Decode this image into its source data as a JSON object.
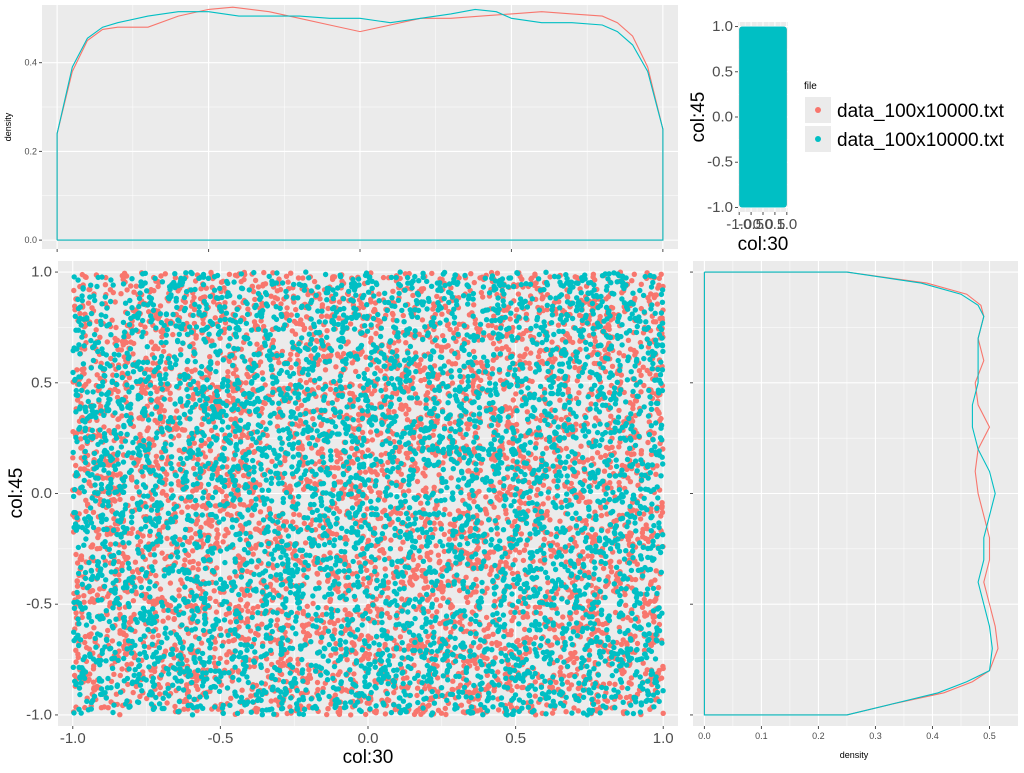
{
  "colors": {
    "series1": "#F8766D",
    "series2": "#00BFC4",
    "panel": "#EBEBEB",
    "grid": "#FFFFFF",
    "tick": "#4D4D4D"
  },
  "legend": {
    "title": "file",
    "entries": [
      "data_100x10000.txt",
      "data_100x10000.txt"
    ],
    "placement": "right"
  },
  "chart_data": [
    {
      "id": "top-density",
      "type": "line",
      "xlabel": "",
      "ylabel": "density",
      "xlim": [
        -1.05,
        1.05
      ],
      "ylim": [
        -0.02,
        0.53
      ],
      "xticks": [
        -1.0,
        -0.5,
        0.0,
        0.5,
        1.0
      ],
      "yticks": [
        0.0,
        0.2,
        0.4
      ],
      "ytick_labels": [
        "0.0",
        "0.2",
        "0.4"
      ],
      "grid": true,
      "series": [
        {
          "color": "#F8766D",
          "x": [
            -1.0,
            -1.0,
            -0.95,
            -0.9,
            -0.85,
            -0.8,
            -0.7,
            -0.6,
            -0.5,
            -0.42,
            -0.3,
            -0.2,
            -0.1,
            0.0,
            0.1,
            0.2,
            0.3,
            0.4,
            0.5,
            0.6,
            0.7,
            0.8,
            0.85,
            0.9,
            0.95,
            1.0,
            1.0,
            -1.0
          ],
          "y": [
            0.0,
            0.24,
            0.38,
            0.45,
            0.475,
            0.48,
            0.48,
            0.505,
            0.52,
            0.525,
            0.515,
            0.5,
            0.485,
            0.47,
            0.485,
            0.5,
            0.5,
            0.505,
            0.51,
            0.515,
            0.51,
            0.505,
            0.49,
            0.46,
            0.39,
            0.25,
            0.0,
            0.0
          ]
        },
        {
          "color": "#00BFC4",
          "x": [
            -1.0,
            -1.0,
            -0.95,
            -0.9,
            -0.85,
            -0.8,
            -0.7,
            -0.6,
            -0.5,
            -0.4,
            -0.3,
            -0.2,
            -0.1,
            0.0,
            0.1,
            0.2,
            0.3,
            0.38,
            0.45,
            0.5,
            0.6,
            0.7,
            0.8,
            0.85,
            0.9,
            0.95,
            1.0,
            1.0,
            -1.0
          ],
          "y": [
            0.0,
            0.24,
            0.39,
            0.455,
            0.48,
            0.49,
            0.505,
            0.515,
            0.515,
            0.505,
            0.505,
            0.505,
            0.5,
            0.5,
            0.49,
            0.5,
            0.51,
            0.52,
            0.515,
            0.5,
            0.49,
            0.49,
            0.485,
            0.47,
            0.44,
            0.38,
            0.25,
            0.0,
            0.0
          ]
        }
      ]
    },
    {
      "id": "main-scatter",
      "type": "scatter",
      "xlabel": "col:30",
      "ylabel": "col:45",
      "xlim": [
        -1.05,
        1.05
      ],
      "ylim": [
        -1.05,
        1.05
      ],
      "xticks": [
        -1.0,
        -0.5,
        0.0,
        0.5,
        1.0
      ],
      "xtick_labels": [
        "-1.0",
        "-0.5",
        "0.0",
        "0.5",
        "1.0"
      ],
      "yticks": [
        -1.0,
        -0.5,
        0.0,
        0.5,
        1.0
      ],
      "ytick_labels": [
        "-1.0",
        "-0.5",
        "0.0",
        "0.5",
        "1.0"
      ],
      "grid": true,
      "distribution": "uniform",
      "x_range": [
        -1.0,
        1.0
      ],
      "y_range": [
        -1.0,
        1.0
      ],
      "series": [
        {
          "color": "#F8766D",
          "point_count": 10000
        },
        {
          "color": "#00BFC4",
          "point_count": 10000
        }
      ]
    },
    {
      "id": "mini-scatter",
      "type": "scatter",
      "xlabel": "col:30",
      "ylabel": "col:45",
      "xlim": [
        -1.05,
        1.05
      ],
      "ylim": [
        -1.05,
        1.05
      ],
      "xticks": [
        -1.0,
        -0.5,
        0.0,
        0.5,
        1.0
      ],
      "xtick_labels": [
        "-1.0",
        "-0.5",
        "0.0",
        "0.5",
        "1.0"
      ],
      "yticks": [
        -1.0,
        -0.5,
        0.0,
        0.5,
        1.0
      ],
      "ytick_labels": [
        "-1.0",
        "-0.5",
        "0.0",
        "0.5",
        "1.0"
      ],
      "grid": true,
      "series": [
        {
          "color": "#F8766D",
          "point_count": 10000
        },
        {
          "color": "#00BFC4",
          "point_count": 10000
        }
      ]
    },
    {
      "id": "right-density",
      "type": "line",
      "xlabel": "density",
      "ylabel": "",
      "xlim": [
        -0.02,
        0.55
      ],
      "ylim": [
        -1.05,
        1.05
      ],
      "xticks": [
        0.0,
        0.1,
        0.2,
        0.3,
        0.4,
        0.5
      ],
      "xtick_labels": [
        "0.0",
        "0.1",
        "0.2",
        "0.3",
        "0.4",
        "0.5"
      ],
      "yticks": [
        -1.0,
        -0.5,
        0.0,
        0.5,
        1.0
      ],
      "grid": true,
      "series": [
        {
          "color": "#F8766D",
          "y": [
            1.0,
            1.0,
            0.95,
            0.9,
            0.85,
            0.8,
            0.7,
            0.6,
            0.5,
            0.4,
            0.3,
            0.2,
            0.1,
            0.0,
            -0.1,
            -0.2,
            -0.3,
            -0.4,
            -0.5,
            -0.6,
            -0.7,
            -0.8,
            -0.85,
            -0.9,
            -0.95,
            -1.0,
            -1.0,
            1.0
          ],
          "x": [
            0.0,
            0.25,
            0.39,
            0.46,
            0.485,
            0.49,
            0.48,
            0.49,
            0.475,
            0.48,
            0.5,
            0.48,
            0.475,
            0.48,
            0.49,
            0.5,
            0.5,
            0.49,
            0.5,
            0.51,
            0.515,
            0.5,
            0.47,
            0.42,
            0.33,
            0.25,
            0.0,
            0.0
          ]
        },
        {
          "color": "#00BFC4",
          "y": [
            1.0,
            1.0,
            0.95,
            0.9,
            0.85,
            0.8,
            0.7,
            0.6,
            0.5,
            0.4,
            0.3,
            0.2,
            0.1,
            0.0,
            -0.1,
            -0.2,
            -0.3,
            -0.4,
            -0.5,
            -0.6,
            -0.7,
            -0.8,
            -0.85,
            -0.9,
            -0.95,
            -1.0,
            -1.0,
            1.0
          ],
          "x": [
            0.0,
            0.25,
            0.38,
            0.45,
            0.48,
            0.49,
            0.48,
            0.48,
            0.48,
            0.47,
            0.47,
            0.48,
            0.5,
            0.51,
            0.5,
            0.49,
            0.49,
            0.48,
            0.49,
            0.5,
            0.505,
            0.5,
            0.46,
            0.41,
            0.33,
            0.25,
            0.0,
            0.0
          ]
        }
      ]
    }
  ]
}
